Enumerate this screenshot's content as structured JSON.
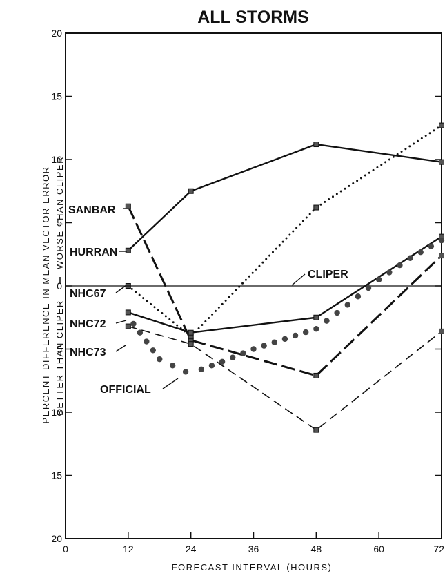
{
  "chart_data": {
    "type": "line",
    "title": "ALL STORMS",
    "xlabel": "FORECAST INTERVAL (HOURS)",
    "ylabel_upper": "PERCENT DIFFERENCE IN MEAN VECTOR ERROR",
    "ylabel_lower_left": "BETTER THAN CLIPER",
    "ylabel_lower_right": "WORSE THAN CLIPER",
    "x_ticks": [
      "0",
      "12",
      "24",
      "36",
      "48",
      "60",
      "72"
    ],
    "y_ticks": [
      "20",
      "15",
      "10",
      "5",
      "0",
      "5",
      "10",
      "15",
      "20"
    ],
    "x_range": [
      0,
      72
    ],
    "y_range": [
      -20,
      20
    ],
    "y_note": "values above 0 = worse than CLIPER, below 0 = better than CLIPER",
    "grid": false,
    "series": [
      {
        "name": "SANBAR",
        "style": "long-dash",
        "x": [
          12,
          24,
          48,
          72
        ],
        "y": [
          6.3,
          -4.3,
          -7.1,
          2.4
        ]
      },
      {
        "name": "HURRAN",
        "style": "solid",
        "x": [
          12,
          24,
          48,
          72
        ],
        "y": [
          2.8,
          7.5,
          11.2,
          9.8
        ]
      },
      {
        "name": "NHC67",
        "style": "dotted",
        "x": [
          12,
          24,
          48,
          72
        ],
        "y": [
          0.0,
          -4.0,
          6.2,
          12.7
        ]
      },
      {
        "name": "CLIPER",
        "style": "thin-solid",
        "x": [
          0,
          72
        ],
        "y": [
          0,
          0
        ]
      },
      {
        "name": "NHC72",
        "style": "solid",
        "x": [
          12,
          24,
          48,
          72
        ],
        "y": [
          -2.1,
          -3.7,
          -2.5,
          3.9
        ]
      },
      {
        "name": "NHC73",
        "style": "dash",
        "x": [
          12,
          24,
          48,
          72
        ],
        "y": [
          -3.2,
          -4.6,
          -11.4,
          -3.6
        ]
      },
      {
        "name": "OFFICIAL",
        "style": "big-dot",
        "x": [
          13,
          18,
          23,
          26,
          30,
          36,
          42,
          48,
          54,
          60,
          66,
          72
        ],
        "y": [
          -3.0,
          -5.8,
          -6.8,
          -6.6,
          -6.0,
          -5.0,
          -4.2,
          -3.4,
          -1.5,
          0.5,
          2.2,
          3.6
        ]
      }
    ]
  }
}
